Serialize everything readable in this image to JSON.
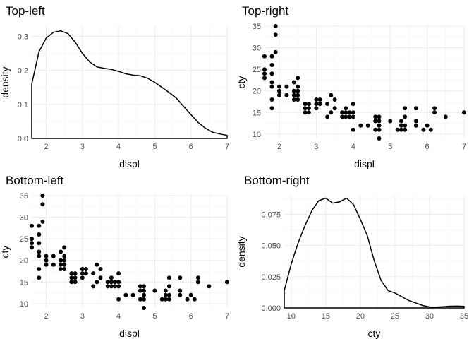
{
  "chart_data": [
    {
      "type": "area",
      "title": "Top-left",
      "xlabel": "displ",
      "ylabel": "density",
      "xlim": [
        1.6,
        7.0
      ],
      "ylim": [
        0,
        0.33
      ],
      "xticks": [
        2,
        3,
        4,
        5,
        6,
        7
      ],
      "yticks": [
        0.0,
        0.1,
        0.2,
        0.3
      ],
      "ytick_labels": [
        "0.0",
        "0.1",
        "0.2",
        "0.3"
      ],
      "grid": true,
      "series": [
        {
          "x": [
            1.6,
            1.8,
            2.0,
            2.2,
            2.4,
            2.6,
            2.8,
            3.0,
            3.2,
            3.4,
            3.6,
            3.8,
            4.0,
            4.2,
            4.4,
            4.6,
            4.8,
            5.0,
            5.2,
            5.4,
            5.6,
            5.8,
            6.0,
            6.2,
            6.4,
            6.6,
            6.8,
            7.0
          ],
          "y": [
            0.16,
            0.255,
            0.295,
            0.312,
            0.316,
            0.308,
            0.283,
            0.25,
            0.225,
            0.21,
            0.206,
            0.203,
            0.197,
            0.19,
            0.186,
            0.184,
            0.177,
            0.165,
            0.15,
            0.135,
            0.118,
            0.094,
            0.07,
            0.047,
            0.03,
            0.018,
            0.013,
            0.009
          ]
        }
      ]
    },
    {
      "type": "scatter",
      "title": "Top-right",
      "xlabel": "displ",
      "ylabel": "cty",
      "xlim": [
        1.6,
        7.0
      ],
      "ylim": [
        9,
        35
      ],
      "xticks": [
        2,
        3,
        4,
        5,
        6,
        7
      ],
      "yticks": [
        10,
        15,
        20,
        25,
        30,
        35
      ],
      "grid": true,
      "x": [
        1.6,
        1.6,
        1.6,
        1.6,
        1.8,
        1.8,
        1.8,
        1.8,
        1.8,
        1.8,
        1.8,
        1.9,
        1.9,
        1.9,
        2.0,
        2.0,
        2.0,
        2.2,
        2.2,
        2.4,
        2.4,
        2.4,
        2.4,
        2.5,
        2.5,
        2.5,
        2.5,
        2.5,
        2.7,
        2.7,
        2.7,
        2.8,
        2.8,
        2.8,
        3.0,
        3.0,
        3.0,
        3.1,
        3.1,
        3.3,
        3.3,
        3.4,
        3.4,
        3.5,
        3.5,
        3.7,
        3.7,
        3.8,
        3.8,
        3.8,
        3.9,
        3.9,
        4.0,
        4.0,
        4.0,
        4.0,
        4.2,
        4.4,
        4.6,
        4.6,
        4.6,
        4.7,
        4.7,
        4.7,
        4.7,
        4.7,
        5.0,
        5.2,
        5.3,
        5.3,
        5.3,
        5.4,
        5.4,
        5.4,
        5.4,
        5.7,
        5.7,
        5.7,
        5.9,
        6.0,
        6.1,
        6.2,
        6.2,
        6.5,
        7.0
      ],
      "y": [
        23,
        24,
        25,
        28,
        16,
        18,
        21,
        22,
        24,
        26,
        28,
        29,
        33,
        35,
        19,
        20,
        21,
        19,
        21,
        18,
        19,
        20,
        22,
        18,
        19,
        20,
        21,
        23,
        15,
        16,
        17,
        15,
        16,
        17,
        16,
        17,
        18,
        17,
        18,
        14,
        17,
        15,
        19,
        16,
        18,
        14,
        15,
        14,
        15,
        16,
        14,
        15,
        11,
        14,
        15,
        17,
        12,
        12,
        11,
        13,
        14,
        9,
        11,
        12,
        13,
        14,
        13,
        11,
        11,
        12,
        13,
        11,
        12,
        14,
        16,
        12,
        13,
        16,
        11,
        12,
        11,
        15,
        16,
        14,
        15
      ]
    },
    {
      "type": "scatter",
      "title": "Bottom-left",
      "xlabel": "displ",
      "ylabel": "cty",
      "xlim": [
        1.6,
        7.0
      ],
      "ylim": [
        9,
        35
      ],
      "xticks": [
        2,
        3,
        4,
        5,
        6,
        7
      ],
      "yticks": [
        10,
        15,
        20,
        25,
        30,
        35
      ],
      "grid": true,
      "x": [
        1.6,
        1.6,
        1.6,
        1.6,
        1.8,
        1.8,
        1.8,
        1.8,
        1.8,
        1.8,
        1.8,
        1.9,
        1.9,
        1.9,
        2.0,
        2.0,
        2.0,
        2.2,
        2.2,
        2.4,
        2.4,
        2.4,
        2.4,
        2.5,
        2.5,
        2.5,
        2.5,
        2.5,
        2.7,
        2.7,
        2.7,
        2.8,
        2.8,
        2.8,
        3.0,
        3.0,
        3.0,
        3.1,
        3.1,
        3.3,
        3.3,
        3.4,
        3.4,
        3.5,
        3.5,
        3.7,
        3.7,
        3.8,
        3.8,
        3.8,
        3.9,
        3.9,
        4.0,
        4.0,
        4.0,
        4.0,
        4.2,
        4.4,
        4.6,
        4.6,
        4.6,
        4.7,
        4.7,
        4.7,
        4.7,
        4.7,
        5.0,
        5.2,
        5.3,
        5.3,
        5.3,
        5.4,
        5.4,
        5.4,
        5.4,
        5.7,
        5.7,
        5.7,
        5.9,
        6.0,
        6.1,
        6.2,
        6.2,
        6.5,
        7.0
      ],
      "y": [
        23,
        24,
        25,
        28,
        16,
        18,
        21,
        22,
        24,
        26,
        28,
        29,
        33,
        35,
        19,
        20,
        21,
        19,
        21,
        18,
        19,
        20,
        22,
        18,
        19,
        20,
        21,
        23,
        15,
        16,
        17,
        15,
        16,
        17,
        16,
        17,
        18,
        17,
        18,
        14,
        17,
        15,
        19,
        16,
        18,
        14,
        15,
        14,
        15,
        16,
        14,
        15,
        11,
        14,
        15,
        17,
        12,
        12,
        11,
        13,
        14,
        9,
        11,
        12,
        13,
        14,
        13,
        11,
        11,
        12,
        13,
        11,
        12,
        14,
        16,
        12,
        13,
        16,
        11,
        12,
        11,
        15,
        16,
        14,
        15
      ]
    },
    {
      "type": "area",
      "title": "Bottom-right",
      "xlabel": "cty",
      "ylabel": "density",
      "xlim": [
        9,
        35
      ],
      "ylim": [
        0,
        0.09
      ],
      "xticks": [
        10,
        15,
        20,
        25,
        30,
        35
      ],
      "yticks": [
        0.0,
        0.025,
        0.05,
        0.075
      ],
      "ytick_labels": [
        "0.000",
        "0.025",
        "0.050",
        "0.075"
      ],
      "grid": true,
      "series": [
        {
          "x": [
            9,
            10,
            11,
            12,
            13,
            14,
            15,
            16,
            17,
            18,
            19,
            20,
            21,
            22,
            23,
            24,
            25,
            26,
            27,
            28,
            29,
            30,
            31,
            32,
            33,
            34,
            35
          ],
          "y": [
            0.014,
            0.035,
            0.052,
            0.066,
            0.078,
            0.086,
            0.088,
            0.084,
            0.085,
            0.088,
            0.083,
            0.071,
            0.058,
            0.038,
            0.022,
            0.014,
            0.012,
            0.009,
            0.006,
            0.004,
            0.002,
            0.0008,
            0.0007,
            0.001,
            0.0014,
            0.0015,
            0.0013
          ]
        }
      ]
    }
  ]
}
